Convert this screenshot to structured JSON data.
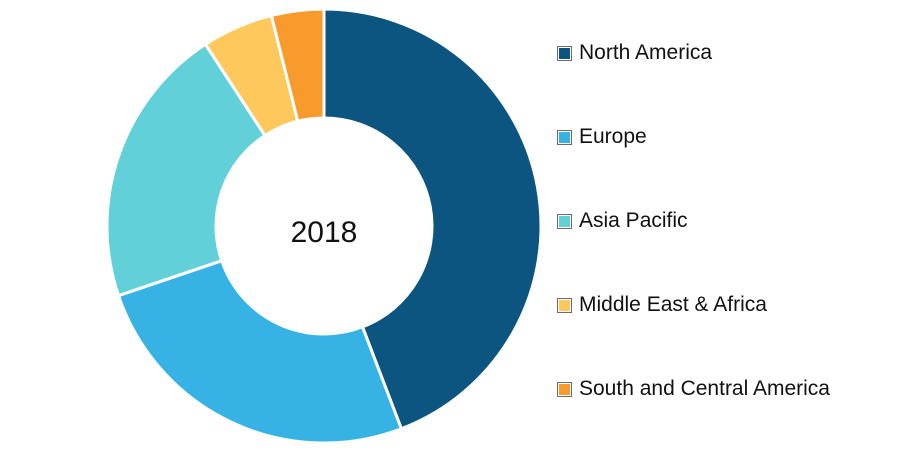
{
  "chart_data": {
    "type": "pie",
    "donut": true,
    "center_label": "2018",
    "categories": [
      "North America",
      "Europe",
      "Asia Pacific",
      "Middle East & Africa",
      "South and Central America"
    ],
    "values": [
      44.2,
      25.6,
      21.0,
      5.3,
      3.9
    ],
    "colors": [
      "#0b5580",
      "#36b3e4",
      "#62d0d8",
      "#ffc85c",
      "#f99a2c"
    ],
    "legend_position": "right"
  }
}
